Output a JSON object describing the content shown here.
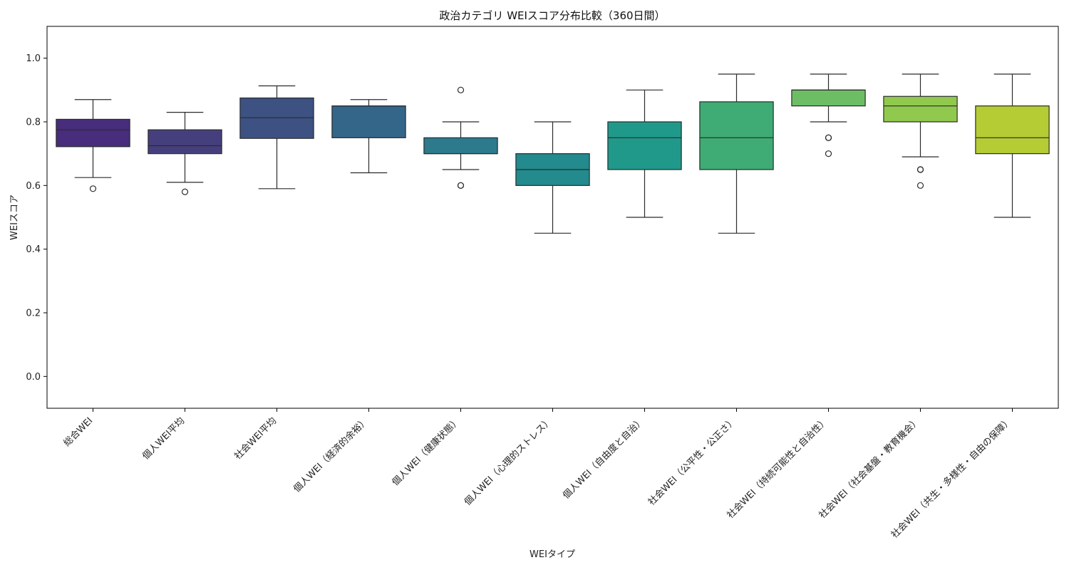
{
  "chart_data": {
    "type": "box",
    "title": "政治カテゴリ WEIスコア分布比較（360日間）",
    "xlabel": "WEIタイプ",
    "ylabel": "WEIスコア",
    "ylim": [
      -0.1,
      1.1
    ],
    "yticks": [
      "0.0",
      "0.2",
      "0.4",
      "0.6",
      "0.8",
      "1.0"
    ],
    "grid": false,
    "categories": [
      "総合WEI",
      "個人WEI平均",
      "社会WEI平均",
      "個人WEI（経済的余裕）",
      "個人WEI（健康状態）",
      "個人WEI（心理的ストレス）",
      "個人WEI（自由度と自治）",
      "社会WEI（公平性・公正さ）",
      "社会WEI（持続可能性と自治性）",
      "社会WEI（社会基盤・教育機会）",
      "社会WEI（共生・多様性・自由の保障）"
    ],
    "boxes": [
      {
        "whisker_low": 0.625,
        "q1": 0.722,
        "median": 0.775,
        "q3": 0.808,
        "whisker_high": 0.87,
        "outliers": [
          0.59
        ],
        "color": "#472d7b"
      },
      {
        "whisker_low": 0.61,
        "q1": 0.7,
        "median": 0.725,
        "q3": 0.775,
        "whisker_high": 0.83,
        "outliers": [
          0.58
        ],
        "color": "#463f7e"
      },
      {
        "whisker_low": 0.59,
        "q1": 0.748,
        "median": 0.813,
        "q3": 0.875,
        "whisker_high": 0.913,
        "outliers": [],
        "color": "#3d5283"
      },
      {
        "whisker_low": 0.64,
        "q1": 0.75,
        "median": 0.85,
        "q3": 0.85,
        "whisker_high": 0.87,
        "outliers": [],
        "color": "#34668a"
      },
      {
        "whisker_low": 0.65,
        "q1": 0.7,
        "median": 0.7,
        "q3": 0.75,
        "whisker_high": 0.8,
        "outliers": [
          0.9,
          0.6,
          0.6
        ],
        "color": "#2c7a8c"
      },
      {
        "whisker_low": 0.45,
        "q1": 0.6,
        "median": 0.65,
        "q3": 0.7,
        "whisker_high": 0.8,
        "outliers": [],
        "color": "#238a8d"
      },
      {
        "whisker_low": 0.5,
        "q1": 0.65,
        "median": 0.75,
        "q3": 0.8,
        "whisker_high": 0.9,
        "outliers": [],
        "color": "#20998a"
      },
      {
        "whisker_low": 0.45,
        "q1": 0.65,
        "median": 0.75,
        "q3": 0.863,
        "whisker_high": 0.95,
        "outliers": [],
        "color": "#3fab75"
      },
      {
        "whisker_low": 0.8,
        "q1": 0.85,
        "median": 0.9,
        "q3": 0.9,
        "whisker_high": 0.95,
        "outliers": [
          0.75,
          0.75,
          0.7
        ],
        "color": "#6cbd64"
      },
      {
        "whisker_low": 0.69,
        "q1": 0.8,
        "median": 0.85,
        "q3": 0.88,
        "whisker_high": 0.95,
        "outliers": [
          0.65,
          0.65,
          0.6
        ],
        "color": "#90c94e"
      },
      {
        "whisker_low": 0.5,
        "q1": 0.7,
        "median": 0.75,
        "q3": 0.85,
        "whisker_high": 0.95,
        "outliers": [],
        "color": "#b5cc35"
      }
    ]
  }
}
